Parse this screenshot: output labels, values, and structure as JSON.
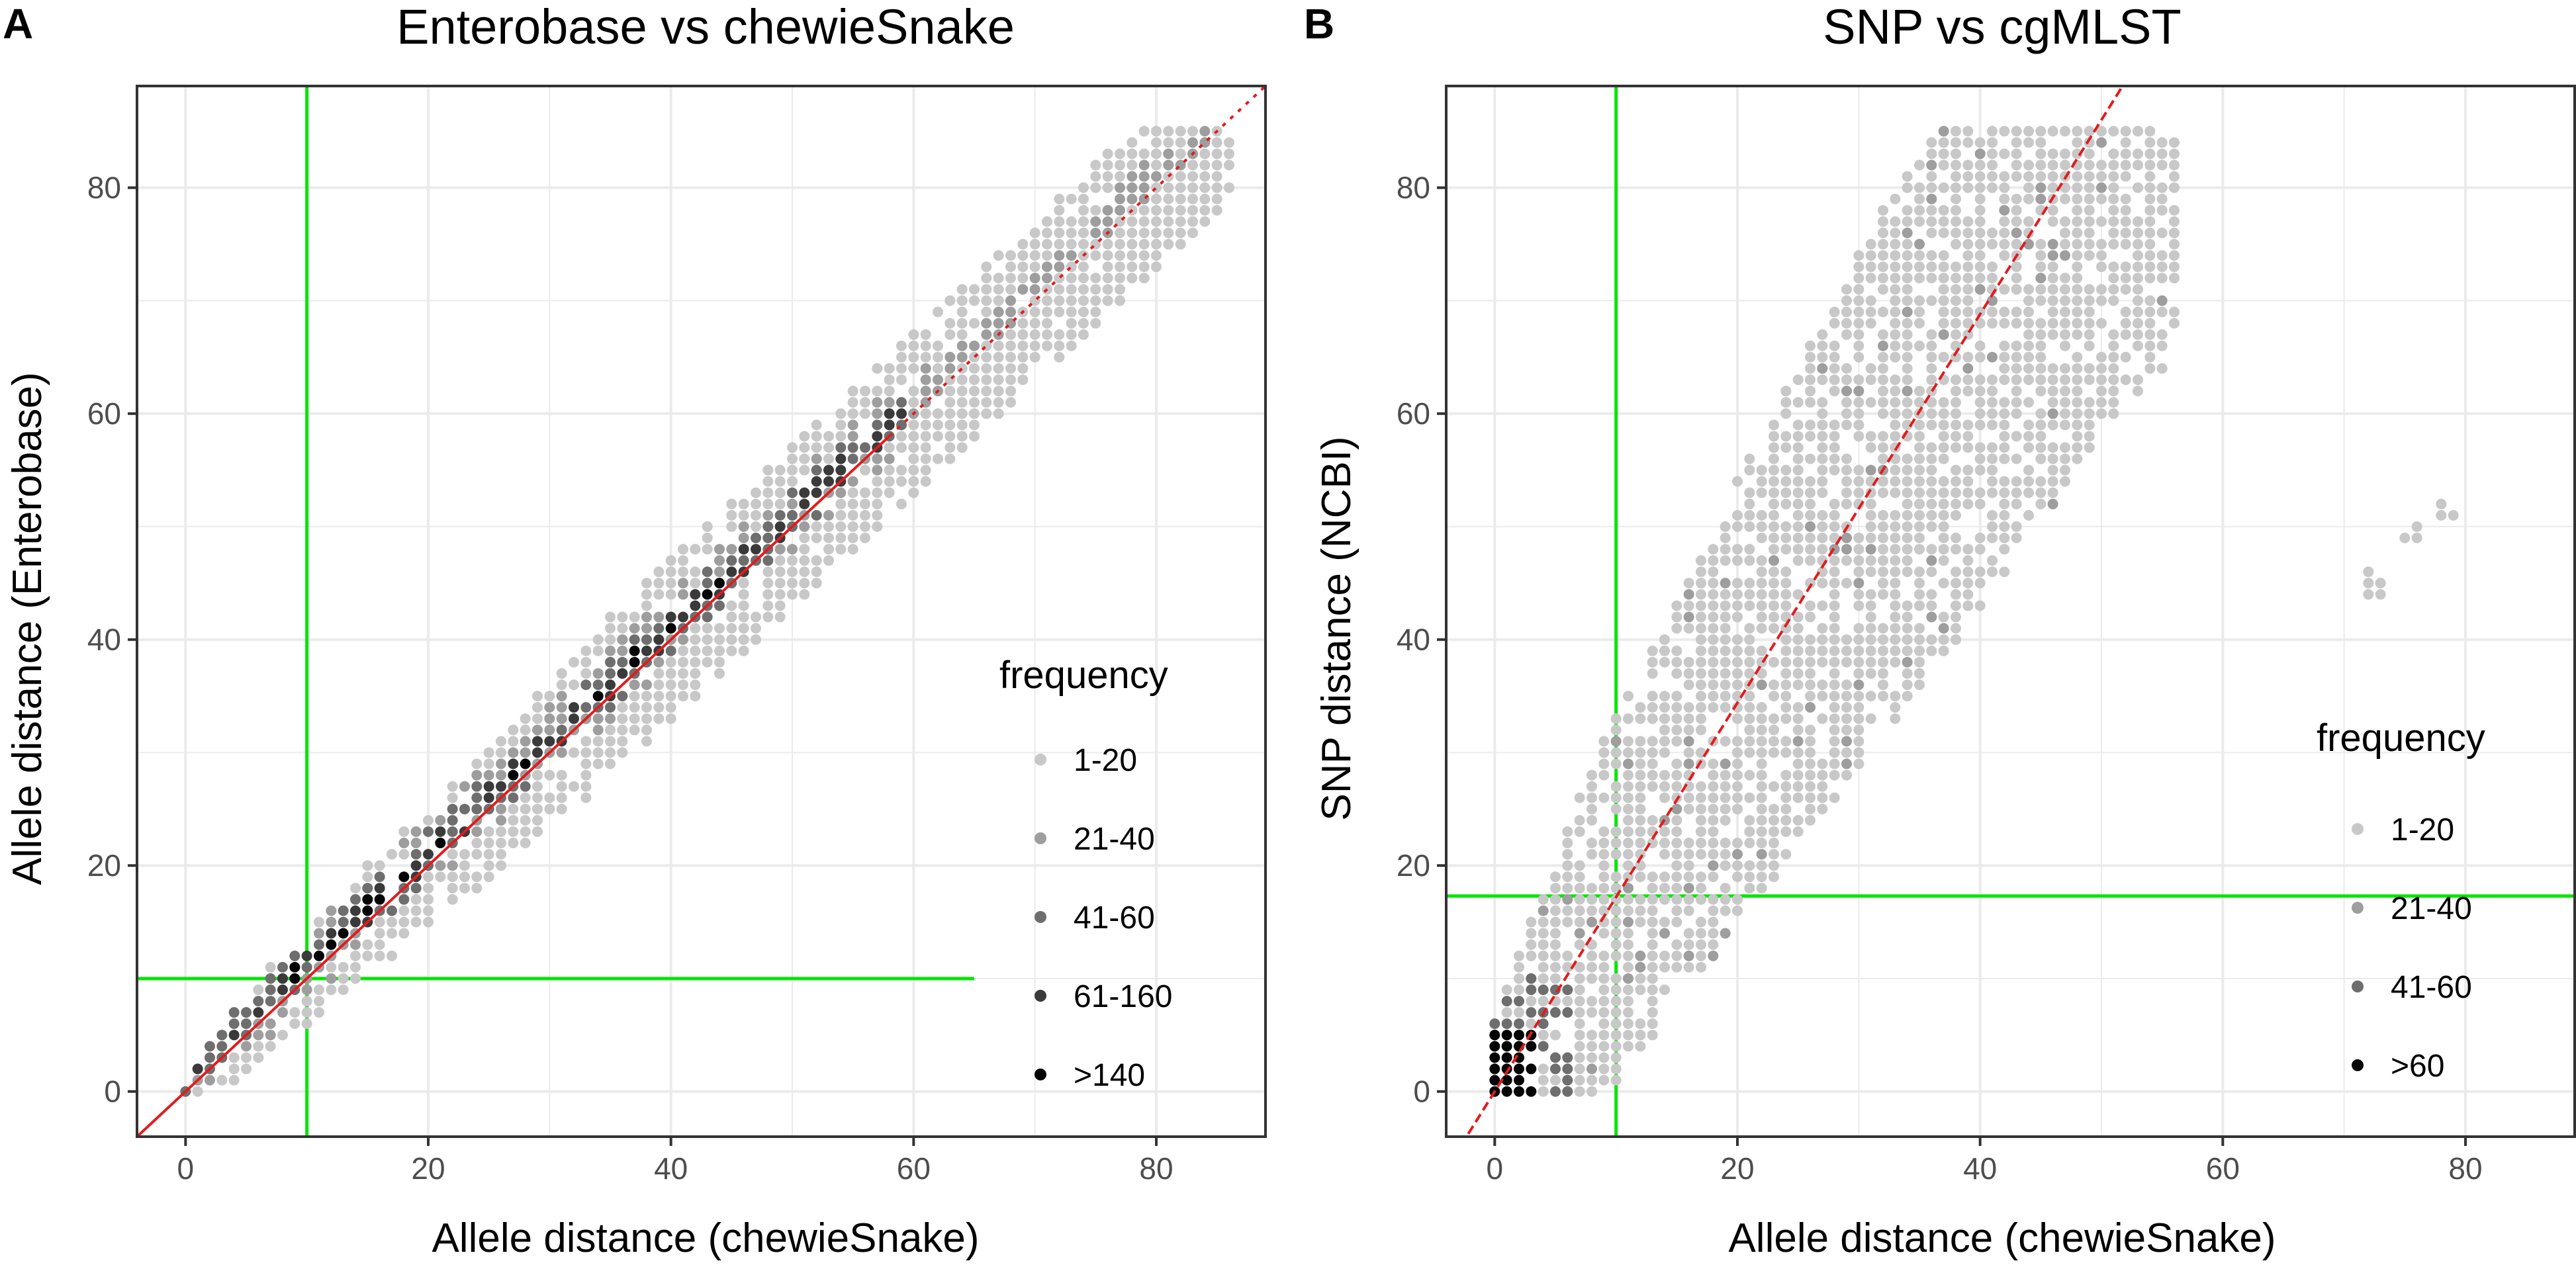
{
  "chart_data": [
    {
      "panel_label": "A",
      "type": "scatter",
      "title": "Enterobase vs chewieSnake",
      "xlabel": "Allele distance (chewieSnake)",
      "ylabel": "Allele distance (Enterobase)",
      "xlim": [
        -4,
        89
      ],
      "ylim": [
        -4,
        89
      ],
      "x_ticks": [
        0,
        20,
        40,
        60,
        80
      ],
      "y_ticks": [
        0,
        20,
        40,
        60,
        80
      ],
      "x_tick_labels": [
        "0",
        "20",
        "40",
        "60",
        "80"
      ],
      "y_tick_labels": [
        "0",
        "20",
        "40",
        "60",
        "80"
      ],
      "grid": true,
      "threshold_lines": {
        "vertical_x": 10,
        "horizontal_y": 10,
        "color": "#00e600"
      },
      "regression_line": {
        "slope": 1.0,
        "intercept": 0.0,
        "style": "solid then dotted",
        "color": "#e41a1c"
      },
      "point_cloud": {
        "band_half_width": 6.5,
        "x_max": 86,
        "y_max": 85
      },
      "legend": {
        "title": "frequency",
        "position": "right",
        "entries": [
          {
            "label": "1-20",
            "color": "#c8c8c8"
          },
          {
            "label": "21-40",
            "color": "#9e9e9e"
          },
          {
            "label": "41-60",
            "color": "#6e6e6e"
          },
          {
            "label": "61-160",
            "color": "#3a3a3a"
          },
          {
            "label": ">140",
            "color": "#050505"
          }
        ]
      },
      "outlier_points": []
    },
    {
      "panel_label": "B",
      "type": "scatter",
      "title": "SNP vs cgMLST",
      "xlabel": "Allele distance (chewieSnake)",
      "ylabel": "SNP distance (NCBI)",
      "xlim": [
        -4,
        89
      ],
      "ylim": [
        -4,
        89
      ],
      "x_ticks": [
        0,
        20,
        40,
        60,
        80
      ],
      "y_ticks": [
        0,
        20,
        40,
        60,
        80
      ],
      "x_tick_labels": [
        "0",
        "20",
        "40",
        "60",
        "80"
      ],
      "y_tick_labels": [
        "0",
        "20",
        "40",
        "60",
        "80"
      ],
      "grid": true,
      "threshold_lines": {
        "vertical_x": 10,
        "horizontal_y": 17.3,
        "color": "#00e600"
      },
      "regression_line": {
        "slope": 1.72,
        "intercept": 0.0,
        "style": "dashed",
        "color": "#e41a1c"
      },
      "point_cloud": {
        "band_half_width": 8,
        "x_max": 56,
        "y_max": 85
      },
      "legend": {
        "title": "frequency",
        "position": "right",
        "entries": [
          {
            "label": "1-20",
            "color": "#c8c8c8"
          },
          {
            "label": "21-40",
            "color": "#9e9e9e"
          },
          {
            "label": "41-60",
            "color": "#6e6e6e"
          },
          {
            "label": ">60",
            "color": "#050505"
          }
        ]
      },
      "outlier_points": [
        [
          72,
          46
        ],
        [
          72,
          45
        ],
        [
          72,
          44
        ],
        [
          73,
          45
        ],
        [
          73,
          44
        ],
        [
          75,
          49
        ],
        [
          76,
          50
        ],
        [
          76,
          49
        ],
        [
          78,
          52
        ],
        [
          78,
          51
        ],
        [
          79,
          51
        ]
      ]
    }
  ]
}
